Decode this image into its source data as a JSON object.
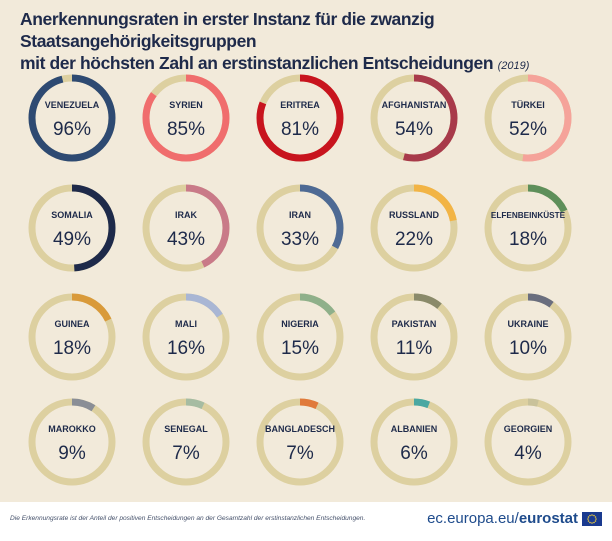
{
  "title": {
    "line1": "Anerkennungsraten in erster Instanz für die zwanzig Staatsangehörigkeitsgruppen",
    "line2": "mit der höchsten Zahl an erstinstanzlichen Entscheidungen",
    "year": "(2019)"
  },
  "footer": {
    "note": "Die Erkennungsrate ist der Anteil der positiven Entscheidungen an der Gesamtzahl der erstinstanzlichen Entscheidungen.",
    "site": "ec.europa.eu/",
    "brand": "eurostat"
  },
  "colors": {
    "background": "#f2eada",
    "track": "#ddd0a0",
    "text": "#1e2a4a"
  },
  "chart_data": {
    "type": "donut-grid",
    "unit": "%",
    "items": [
      {
        "label": "VENEZUELA",
        "value": 96,
        "display": "96%",
        "color": "#2e4a72"
      },
      {
        "label": "SYRIEN",
        "value": 85,
        "display": "85%",
        "color": "#f06d6d"
      },
      {
        "label": "ERITREA",
        "value": 81,
        "display": "81%",
        "color": "#c8141e"
      },
      {
        "label": "AFGHANISTAN",
        "value": 54,
        "display": "54%",
        "color": "#a83a4a"
      },
      {
        "label": "TÜRKEI",
        "value": 52,
        "display": "52%",
        "color": "#f5a39a"
      },
      {
        "label": "SOMALIA",
        "value": 49,
        "display": "49%",
        "color": "#1e2a4a"
      },
      {
        "label": "IRAK",
        "value": 43,
        "display": "43%",
        "color": "#c97a88"
      },
      {
        "label": "IRAN",
        "value": 33,
        "display": "33%",
        "color": "#4e6a94"
      },
      {
        "label": "RUSSLAND",
        "value": 22,
        "display": "22%",
        "color": "#f2b445"
      },
      {
        "label": "ELFENBEINKÜSTE",
        "value": 18,
        "display": "18%",
        "color": "#5e8f5a"
      },
      {
        "label": "GUINEA",
        "value": 18,
        "display": "18%",
        "color": "#d99a3a"
      },
      {
        "label": "MALI",
        "value": 16,
        "display": "16%",
        "color": "#a9b6d4"
      },
      {
        "label": "NIGERIA",
        "value": 15,
        "display": "15%",
        "color": "#8fb08a"
      },
      {
        "label": "PAKISTAN",
        "value": 11,
        "display": "11%",
        "color": "#8a8a6a"
      },
      {
        "label": "UKRAINE",
        "value": 10,
        "display": "10%",
        "color": "#6a6e7e"
      },
      {
        "label": "MAROKKO",
        "value": 9,
        "display": "9%",
        "color": "#8a8e96"
      },
      {
        "label": "SENEGAL",
        "value": 7,
        "display": "7%",
        "color": "#a6bca2"
      },
      {
        "label": "BANGLADESCH",
        "value": 7,
        "display": "7%",
        "color": "#e07a3a"
      },
      {
        "label": "ALBANIEN",
        "value": 6,
        "display": "6%",
        "color": "#4aa8a2"
      },
      {
        "label": "GEORGIEN",
        "value": 4,
        "display": "4%",
        "color": "#c9c29a"
      }
    ]
  }
}
